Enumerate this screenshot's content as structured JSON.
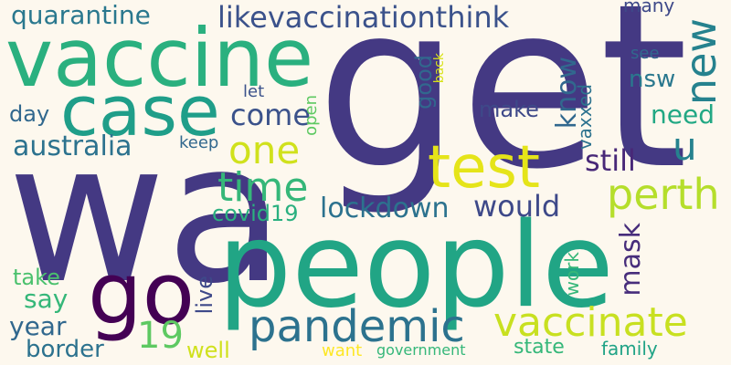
{
  "words": [
    {
      "text": "get",
      "color": "#443983"
    },
    {
      "text": "wa",
      "color": "#443983"
    },
    {
      "text": "people",
      "color": "#21a585"
    },
    {
      "text": "vaccine",
      "color": "#2ab07f"
    },
    {
      "text": "case",
      "color": "#1f9e89"
    },
    {
      "text": "test",
      "color": "#e5e419"
    },
    {
      "text": "go",
      "color": "#440154"
    },
    {
      "text": "pandemic",
      "color": "#2c728e"
    },
    {
      "text": "vaccinate",
      "color": "#c8e020"
    },
    {
      "text": "perth",
      "color": "#b5de2b"
    },
    {
      "text": "new",
      "color": "#26828e"
    },
    {
      "text": "one",
      "color": "#d0e11c"
    },
    {
      "text": "time",
      "color": "#35b779"
    },
    {
      "text": "lockdown",
      "color": "#2c728e"
    },
    {
      "text": "likevaccinationthink",
      "color": "#3b528b"
    },
    {
      "text": "quarantine",
      "color": "#2a788e"
    },
    {
      "text": "australia",
      "color": "#2c728e"
    },
    {
      "text": "u",
      "color": "#26828e"
    },
    {
      "text": "would",
      "color": "#3e4989"
    },
    {
      "text": "still",
      "color": "#482878"
    },
    {
      "text": "come",
      "color": "#3b528b"
    },
    {
      "text": "need",
      "color": "#22a884"
    },
    {
      "text": "knowgood",
      "color": "#31688e"
    },
    {
      "text": "19",
      "color": "#5ec962"
    },
    {
      "text": "year",
      "color": "#31688e"
    },
    {
      "text": "border",
      "color": "#2c728e"
    },
    {
      "text": "say",
      "color": "#35b779"
    },
    {
      "text": "take",
      "color": "#4ac16d"
    },
    {
      "text": "mask",
      "color": "#472d7b"
    },
    {
      "text": "covid19",
      "color": "#2ab07f"
    },
    {
      "text": "day",
      "color": "#31688e"
    },
    {
      "text": "make",
      "color": "#3e4989"
    },
    {
      "text": "nsw",
      "color": "#2a788e"
    },
    {
      "text": "keep",
      "color": "#31688e"
    },
    {
      "text": "live",
      "color": "#3e4989"
    },
    {
      "text": "well",
      "color": "#d0e11c"
    },
    {
      "text": "state",
      "color": "#35b779"
    },
    {
      "text": "family",
      "color": "#20a386"
    },
    {
      "text": "want",
      "color": "#fde725"
    },
    {
      "text": "government",
      "color": "#35b779"
    },
    {
      "text": "work",
      "color": "#35b779"
    },
    {
      "text": "vaxxed",
      "color": "#2c728e"
    },
    {
      "text": "open",
      "color": "#5ec962"
    },
    {
      "text": "let",
      "color": "#3b528b"
    },
    {
      "text": "see",
      "color": "#31688e"
    },
    {
      "text": "many",
      "color": "#3e4989"
    },
    {
      "text": "back",
      "color": "#d8e219"
    },
    {
      "text": "good",
      "color": "#31688e"
    }
  ]
}
